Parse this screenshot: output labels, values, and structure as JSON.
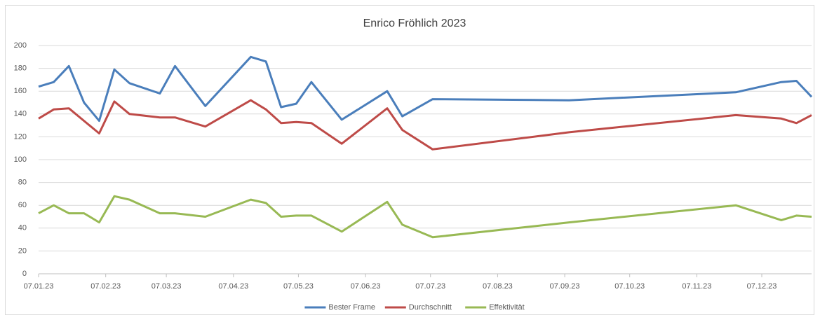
{
  "chart_data": {
    "type": "line",
    "title": "Enrico Fröhlich 2023",
    "x": [
      "07.01.23",
      "14.01.23",
      "21.01.23",
      "28.01.23",
      "04.02.23",
      "11.02.23",
      "18.02.23",
      "04.03.23",
      "11.03.23",
      "25.03.23",
      "15.04.23",
      "22.04.23",
      "29.04.23",
      "06.05.23",
      "13.05.23",
      "27.05.23",
      "17.06.23",
      "24.06.23",
      "08.07.23",
      "09.09.23",
      "25.11.23",
      "16.12.23",
      "23.12.23",
      "30.12.23"
    ],
    "series": [
      {
        "name": "Bester Frame",
        "color": "#4a7ebb",
        "values": [
          164,
          168,
          182,
          150,
          134,
          179,
          167,
          158,
          182,
          147,
          190,
          186,
          146,
          149,
          168,
          135,
          160,
          138,
          153,
          152,
          159,
          168,
          169,
          155
        ]
      },
      {
        "name": "Durchschnitt",
        "color": "#be4b48",
        "values": [
          136,
          144,
          145,
          134,
          123,
          151,
          140,
          137,
          137,
          129,
          152,
          144,
          132,
          133,
          132,
          114,
          145,
          126,
          109,
          124,
          139,
          136,
          132,
          139
        ]
      },
      {
        "name": "Effektivität",
        "color": "#98b954",
        "values": [
          53,
          60,
          53,
          53,
          45,
          68,
          65,
          53,
          53,
          50,
          65,
          62,
          50,
          51,
          51,
          37,
          63,
          43,
          32,
          45,
          60,
          47,
          51,
          50
        ]
      }
    ],
    "xlim": [
      "07.01.23",
      "30.12.23"
    ],
    "xticks": [
      "07.01.23",
      "07.02.23",
      "07.03.23",
      "07.04.23",
      "07.05.23",
      "07.06.23",
      "07.07.23",
      "07.08.23",
      "07.09.23",
      "07.10.23",
      "07.11.23",
      "07.12.23"
    ],
    "ylim": [
      0,
      200
    ],
    "yticks": [
      0,
      20,
      40,
      60,
      80,
      100,
      120,
      140,
      160,
      180,
      200
    ],
    "grid": true,
    "legend": "bottom"
  }
}
